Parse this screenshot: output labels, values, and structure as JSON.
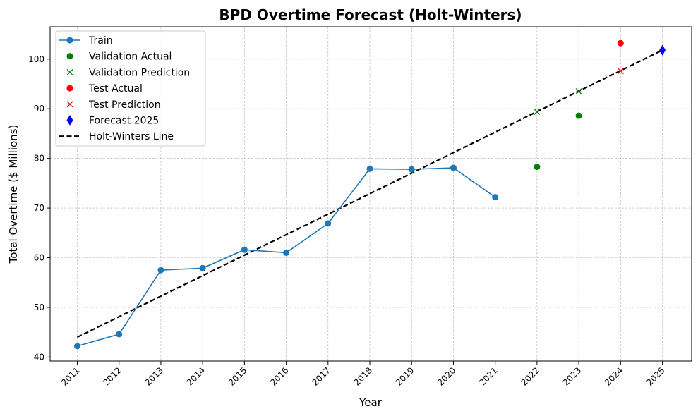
{
  "chart_data": {
    "type": "line",
    "title": "BPD Overtime Forecast (Holt-Winters)",
    "xlabel": "Year",
    "ylabel": "Total Overtime ($ Millions)",
    "x_ticks": [
      "2011",
      "2012",
      "2013",
      "2014",
      "2015",
      "2016",
      "2017",
      "2018",
      "2019",
      "2020",
      "2021",
      "2022",
      "2023",
      "2024",
      "2025"
    ],
    "y_ticks": [
      40,
      50,
      60,
      70,
      80,
      90,
      100
    ],
    "xlim": [
      2010.35,
      2025.7
    ],
    "ylim": [
      39.2,
      106.5
    ],
    "grid": true,
    "legend_position": "top-left",
    "series": [
      {
        "name": "Train",
        "kind": "line-marker",
        "color": "#1f77b4",
        "x": [
          2011,
          2012,
          2013,
          2014,
          2015,
          2016,
          2017,
          2018,
          2019,
          2020,
          2021
        ],
        "y": [
          42.2,
          44.6,
          57.5,
          57.9,
          61.6,
          61.0,
          66.9,
          77.9,
          77.8,
          78.1,
          72.2
        ]
      },
      {
        "name": "Validation Actual",
        "kind": "dot",
        "color": "#008000",
        "x": [
          2022,
          2023
        ],
        "y": [
          78.3,
          88.6
        ]
      },
      {
        "name": "Validation Prediction",
        "kind": "x",
        "color": "#008000",
        "x": [
          2022,
          2023
        ],
        "y": [
          89.4,
          93.5
        ]
      },
      {
        "name": "Test Actual",
        "kind": "dot",
        "color": "#ff0000",
        "x": [
          2024
        ],
        "y": [
          103.2
        ]
      },
      {
        "name": "Test Prediction",
        "kind": "x",
        "color": "#ff0000",
        "x": [
          2024
        ],
        "y": [
          97.6
        ]
      },
      {
        "name": "Forecast 2025",
        "kind": "diamond",
        "color": "#0000ff",
        "x": [
          2025
        ],
        "y": [
          101.8
        ]
      },
      {
        "name": "Holt-Winters Line",
        "kind": "dashed-line",
        "color": "#000000",
        "x": [
          2011,
          2025
        ],
        "y": [
          44.0,
          101.8
        ]
      }
    ]
  }
}
